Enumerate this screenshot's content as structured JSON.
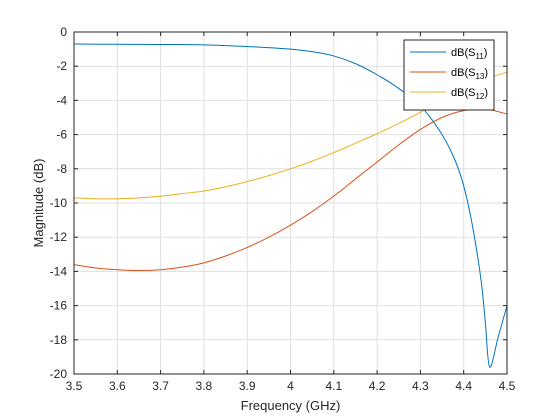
{
  "chart_data": {
    "type": "line",
    "xlabel": "Frequency (GHz)",
    "ylabel": "Magnitude (dB)",
    "xlim": [
      3.5,
      4.5
    ],
    "ylim": [
      -20,
      0
    ],
    "xticks": [
      "3.5",
      "3.6",
      "3.7",
      "3.8",
      "3.9",
      "4",
      "4.1",
      "4.2",
      "4.3",
      "4.4",
      "4.5"
    ],
    "yticks": [
      "0",
      "-2",
      "-4",
      "-6",
      "-8",
      "-10",
      "-12",
      "-14",
      "-16",
      "-18",
      "-20"
    ],
    "grid": true,
    "legend_position": "top-right",
    "series": [
      {
        "name": "dB(S11)",
        "name_base": "dB(S",
        "name_sub": "11",
        "name_suffix": ")",
        "color": "#0072BD",
        "x": [
          3.5,
          3.6,
          3.7,
          3.8,
          3.9,
          4.0,
          4.05,
          4.1,
          4.15,
          4.2,
          4.25,
          4.3,
          4.35,
          4.38,
          4.4,
          4.42,
          4.44,
          4.45,
          4.46,
          4.48,
          4.5
        ],
        "y": [
          -0.7,
          -0.72,
          -0.73,
          -0.75,
          -0.85,
          -1.0,
          -1.15,
          -1.4,
          -1.85,
          -2.5,
          -3.3,
          -4.3,
          -6.0,
          -7.5,
          -9.0,
          -11.3,
          -14.5,
          -17.0,
          -19.6,
          -17.8,
          -16.0
        ]
      },
      {
        "name": "dB(S13)",
        "name_base": "dB(S",
        "name_sub": "13",
        "name_suffix": ")",
        "color": "#D95319",
        "x": [
          3.5,
          3.55,
          3.6,
          3.65,
          3.7,
          3.75,
          3.8,
          3.85,
          3.9,
          3.95,
          4.0,
          4.05,
          4.1,
          4.15,
          4.2,
          4.25,
          4.3,
          4.35,
          4.4,
          4.45,
          4.5
        ],
        "y": [
          -13.6,
          -13.8,
          -13.9,
          -13.95,
          -13.9,
          -13.75,
          -13.5,
          -13.1,
          -12.6,
          -12.0,
          -11.3,
          -10.5,
          -9.6,
          -8.6,
          -7.6,
          -6.6,
          -5.7,
          -5.0,
          -4.6,
          -4.5,
          -4.8
        ]
      },
      {
        "name": "dB(S12)",
        "name_base": "dB(S",
        "name_sub": "12",
        "name_suffix": ")",
        "color": "#EDB120",
        "x": [
          3.5,
          3.55,
          3.6,
          3.65,
          3.7,
          3.75,
          3.8,
          3.85,
          3.9,
          3.95,
          4.0,
          4.05,
          4.1,
          4.15,
          4.2,
          4.25,
          4.3,
          4.35,
          4.4,
          4.45,
          4.5
        ],
        "y": [
          -9.7,
          -9.75,
          -9.75,
          -9.7,
          -9.6,
          -9.45,
          -9.3,
          -9.05,
          -8.75,
          -8.4,
          -8.0,
          -7.55,
          -7.05,
          -6.5,
          -5.95,
          -5.35,
          -4.7,
          -4.0,
          -3.3,
          -2.75,
          -2.35
        ]
      }
    ]
  }
}
